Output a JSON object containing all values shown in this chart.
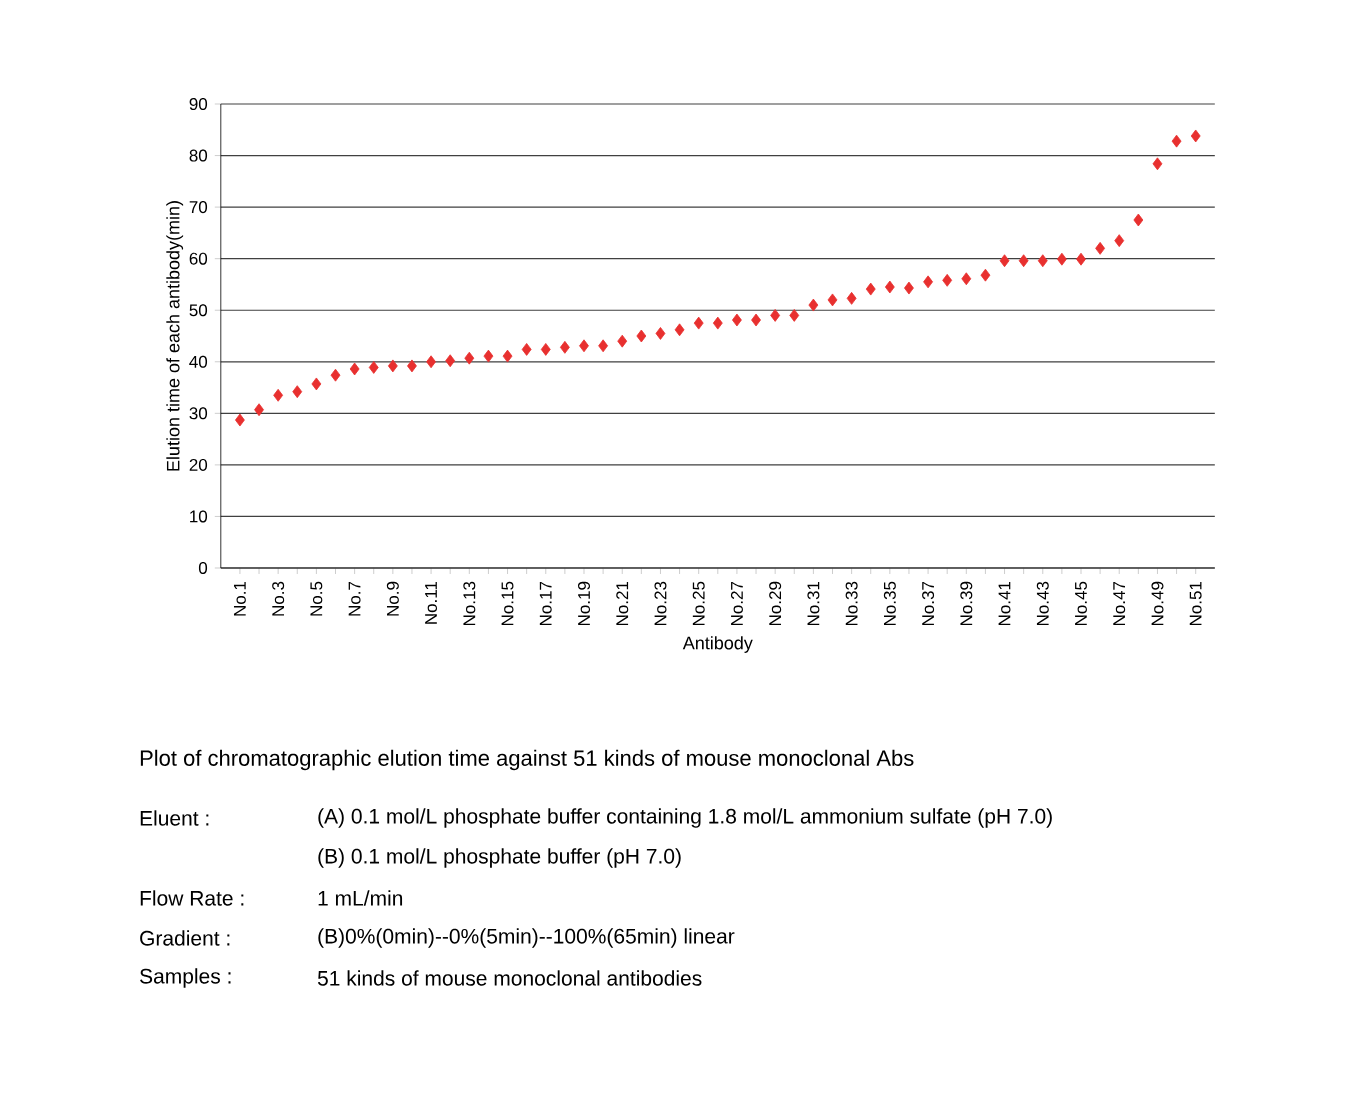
{
  "chart_data": {
    "type": "scatter",
    "xlabel": "Antibody",
    "ylabel": "Elution time of each antibody(min)",
    "categories": [
      "No.1",
      null,
      "No.3",
      null,
      "No.5",
      null,
      "No.7",
      null,
      "No.9",
      null,
      "No.11",
      null,
      "No.13",
      null,
      "No.15",
      null,
      "No.17",
      null,
      "No.19",
      null,
      "No.21",
      null,
      "No.23",
      null,
      "No.25",
      null,
      "No.27",
      null,
      "No.29",
      null,
      "No.31",
      null,
      "No.33",
      null,
      "No.35",
      null,
      "No.37",
      null,
      "No.39",
      null,
      "No.41",
      null,
      "No.43",
      null,
      "No.45",
      null,
      "No.47",
      null,
      "No.49",
      null,
      "No.51"
    ],
    "values": [
      28.7,
      30.7,
      33.5,
      34.2,
      35.7,
      37.4,
      38.6,
      38.9,
      39.2,
      39.2,
      40.0,
      40.2,
      40.7,
      41.1,
      41.1,
      42.4,
      42.4,
      42.8,
      43.1,
      43.1,
      44.0,
      45.0,
      45.5,
      46.2,
      47.5,
      47.5,
      48.1,
      48.1,
      49.0,
      49.0,
      51.0,
      52.0,
      52.3,
      54.1,
      54.5,
      54.3,
      55.5,
      55.8,
      56.1,
      56.8,
      59.6,
      59.6,
      59.6,
      59.9,
      59.9,
      62.0,
      63.5,
      67.5,
      78.4,
      82.8,
      83.8
    ],
    "color": "#e8302f",
    "marker": "diamond",
    "ylim": [
      0,
      90
    ],
    "yticks": [
      0,
      10,
      20,
      30,
      40,
      50,
      60,
      70,
      80,
      90
    ],
    "grid": "y",
    "annotations": [
      "Plot of chromatographic elution time against 51 kinds of mouse monoclonal Abs",
      "Eluent :",
      "(A) 0.1 mol/L phosphate buffer containing 1.8 mol/L ammonium sulfate (pH 7.0)",
      "(B) 0.1 mol/L phosphate buffer (pH 7.0)",
      "Flow Rate :",
      "1 mL/min",
      "Gradient :",
      "(B)0%(0min)--0%(5min)--100%(65min) linear",
      "Samples :",
      "51 kinds of mouse monoclonal antibodies"
    ]
  }
}
